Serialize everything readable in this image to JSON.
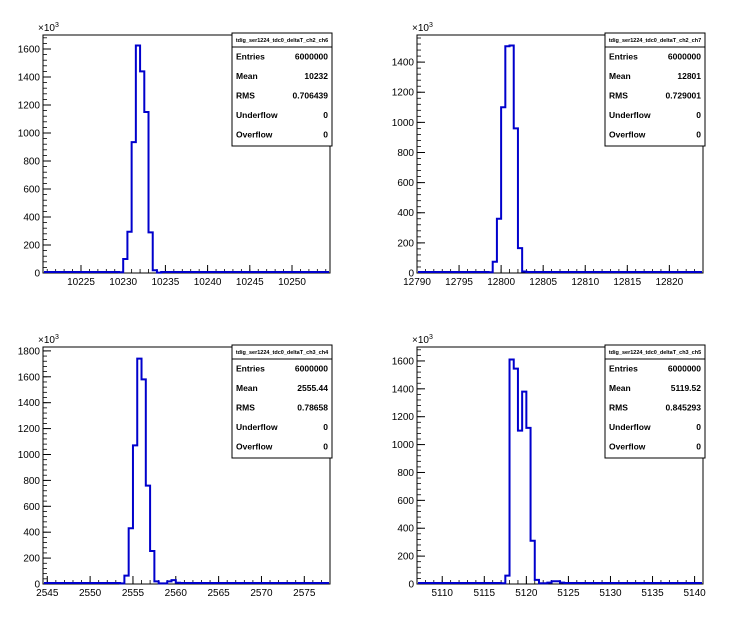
{
  "chart_data": [
    {
      "type": "histogram",
      "title": "tdig_ser1224_tdc0_deltaT_ch2_ch6",
      "exponent_label": "×10",
      "exponent_power": "3",
      "xlim": [
        10220.5,
        10254.5
      ],
      "ylim": [
        0,
        1700
      ],
      "x_ticks": [
        10225,
        10230,
        10235,
        10240,
        10245,
        10250
      ],
      "y_ticks": [
        0,
        200,
        400,
        600,
        800,
        1000,
        1200,
        1400,
        1600
      ],
      "bin_width": 0.5,
      "bins": [
        [
          10229.5,
          5
        ],
        [
          10230,
          100
        ],
        [
          10230.5,
          295
        ],
        [
          10231,
          935
        ],
        [
          10231.5,
          1625
        ],
        [
          10232,
          1440
        ],
        [
          10232.5,
          1150
        ],
        [
          10233,
          290
        ],
        [
          10233.5,
          20
        ],
        [
          10234,
          3
        ]
      ],
      "color": "#0000cc",
      "stats": {
        "title": "tdig_ser1224_tdc0_deltaT_ch2_ch6",
        "rows": [
          [
            "Entries",
            "6000000"
          ],
          [
            "Mean",
            "10232"
          ],
          [
            "RMS",
            "0.706439"
          ],
          [
            "Underflow",
            "0"
          ],
          [
            "Overflow",
            "0"
          ]
        ]
      }
    },
    {
      "type": "histogram",
      "title": "tdig_ser1224_tdc0_deltaT_ch2_ch7",
      "exponent_label": "×10",
      "exponent_power": "3",
      "xlim": [
        12790,
        12824
      ],
      "ylim": [
        0,
        1580
      ],
      "x_ticks": [
        12790,
        12795,
        12800,
        12805,
        12810,
        12815,
        12820
      ],
      "y_ticks": [
        0,
        200,
        400,
        600,
        800,
        1000,
        1200,
        1400
      ],
      "bin_width": 0.5,
      "bins": [
        [
          12798.5,
          5
        ],
        [
          12799,
          75
        ],
        [
          12799.5,
          360
        ],
        [
          12800,
          1100
        ],
        [
          12800.5,
          1505
        ],
        [
          12801,
          1510
        ],
        [
          12801.5,
          960
        ],
        [
          12802,
          165
        ],
        [
          12802.5,
          10
        ]
      ],
      "color": "#0000cc",
      "stats": {
        "title": "tdig_ser1224_tdc0_deltaT_ch2_ch7",
        "rows": [
          [
            "Entries",
            "6000000"
          ],
          [
            "Mean",
            "12801"
          ],
          [
            "RMS",
            "0.729001"
          ],
          [
            "Underflow",
            "0"
          ],
          [
            "Overflow",
            "0"
          ]
        ]
      }
    },
    {
      "type": "histogram",
      "title": "tdig_ser1224_tdc0_deltaT_ch3_ch4",
      "exponent_label": "×10",
      "exponent_power": "3",
      "xlim": [
        2544.5,
        2578
      ],
      "ylim": [
        0,
        1830
      ],
      "x_ticks": [
        2545,
        2550,
        2555,
        2560,
        2565,
        2570,
        2575
      ],
      "y_ticks": [
        0,
        200,
        400,
        600,
        800,
        1000,
        1200,
        1400,
        1600,
        1800
      ],
      "bin_width": 0.5,
      "bins": [
        [
          2553.5,
          5
        ],
        [
          2554,
          65
        ],
        [
          2554.5,
          430
        ],
        [
          2555,
          1070
        ],
        [
          2555.5,
          1740
        ],
        [
          2556,
          1580
        ],
        [
          2556.5,
          760
        ],
        [
          2557,
          255
        ],
        [
          2557.5,
          20
        ],
        [
          2558,
          5
        ],
        [
          2558.5,
          5
        ],
        [
          2559,
          20
        ],
        [
          2559.5,
          30
        ],
        [
          2560,
          10
        ]
      ],
      "color": "#0000cc",
      "stats": {
        "title": "tdig_ser1224_tdc0_deltaT_ch3_ch4",
        "rows": [
          [
            "Entries",
            "6000000"
          ],
          [
            "Mean",
            "2555.44"
          ],
          [
            "RMS",
            "0.78658"
          ],
          [
            "Underflow",
            "0"
          ],
          [
            "Overflow",
            "0"
          ]
        ]
      }
    },
    {
      "type": "histogram",
      "title": "tdig_ser1224_tdc0_deltaT_ch3_ch5",
      "exponent_label": "×10",
      "exponent_power": "3",
      "xlim": [
        5107,
        5141
      ],
      "ylim": [
        0,
        1700
      ],
      "x_ticks": [
        5110,
        5115,
        5120,
        5125,
        5130,
        5135,
        5140
      ],
      "y_ticks": [
        0,
        200,
        400,
        600,
        800,
        1000,
        1200,
        1400,
        1600
      ],
      "bin_width": 0.5,
      "bins": [
        [
          5117,
          5
        ],
        [
          5117.5,
          60
        ],
        [
          5118,
          1610
        ],
        [
          5118.5,
          1545
        ],
        [
          5119,
          1100
        ],
        [
          5119.5,
          1380
        ],
        [
          5120,
          1120
        ],
        [
          5120.5,
          310
        ],
        [
          5121,
          30
        ],
        [
          5121.5,
          5
        ],
        [
          5122,
          5
        ],
        [
          5122.5,
          10
        ],
        [
          5123,
          20
        ],
        [
          5123.5,
          20
        ],
        [
          5124,
          10
        ]
      ],
      "color": "#0000cc",
      "stats": {
        "title": "tdig_ser1224_tdc0_deltaT_ch3_ch5",
        "rows": [
          [
            "Entries",
            "6000000"
          ],
          [
            "Mean",
            "5119.52"
          ],
          [
            "RMS",
            "0.845293"
          ],
          [
            "Underflow",
            "0"
          ],
          [
            "Overflow",
            "0"
          ]
        ]
      }
    }
  ]
}
